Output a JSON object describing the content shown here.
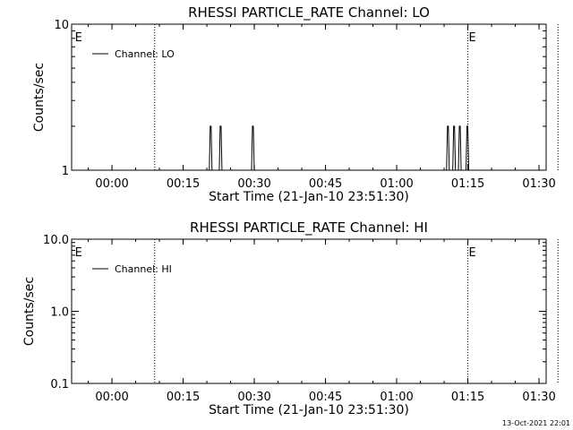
{
  "chart_data": [
    {
      "type": "line",
      "title": "RHESSI PARTICLE_RATE Channel: LO",
      "xlabel": "Start Time (21-Jan-10 23:51:30)",
      "ylabel": "Counts/sec",
      "x_tick_labels": [
        "00:00",
        "00:15",
        "00:30",
        "00:45",
        "01:00",
        "01:15",
        "01:30"
      ],
      "x_tick_minutes": [
        8.5,
        23.5,
        38.5,
        53.5,
        68.5,
        83.5,
        98.5
      ],
      "xlim_minutes": [
        0,
        100
      ],
      "y_scale": "log",
      "ylim": [
        1,
        10
      ],
      "y_tick_labels": [
        "1",
        "10"
      ],
      "y_tick_values": [
        1,
        10
      ],
      "legend": {
        "label": "Channel: LO",
        "position": "top-left"
      },
      "event_markers": [
        {
          "minute": 0.5,
          "label": "E"
        },
        {
          "minute": 83.5,
          "label": "E"
        }
      ],
      "dotted_lines_minutes": [
        17.5,
        83.5,
        102.5
      ],
      "series": [
        {
          "name": "Channel: LO",
          "spikes": [
            {
              "minute": 29.3,
              "value": 2
            },
            {
              "minute": 31.4,
              "value": 2
            },
            {
              "minute": 38.2,
              "value": 2
            },
            {
              "minute": 79.3,
              "value": 2
            },
            {
              "minute": 80.6,
              "value": 2
            },
            {
              "minute": 81.8,
              "value": 2
            },
            {
              "minute": 83.4,
              "value": 2
            }
          ]
        }
      ]
    },
    {
      "type": "line",
      "title": "RHESSI PARTICLE_RATE Channel: HI",
      "xlabel": "Start Time (21-Jan-10 23:51:30)",
      "ylabel": "Counts/sec",
      "x_tick_labels": [
        "00:00",
        "00:15",
        "00:30",
        "00:45",
        "01:00",
        "01:15",
        "01:30"
      ],
      "x_tick_minutes": [
        8.5,
        23.5,
        38.5,
        53.5,
        68.5,
        83.5,
        98.5
      ],
      "xlim_minutes": [
        0,
        100
      ],
      "y_scale": "log",
      "ylim": [
        0.1,
        10
      ],
      "y_tick_labels": [
        "0.1",
        "1.0",
        "10.0"
      ],
      "y_tick_values": [
        0.1,
        1,
        10
      ],
      "legend": {
        "label": "Channel: HI",
        "position": "top-left"
      },
      "event_markers": [
        {
          "minute": 0.5,
          "label": "E"
        },
        {
          "minute": 83.5,
          "label": "E"
        }
      ],
      "dotted_lines_minutes": [
        17.5,
        83.5,
        102.5
      ],
      "series": [
        {
          "name": "Channel: HI",
          "spikes": []
        }
      ]
    }
  ],
  "footer": {
    "timestamp": "13-Oct-2021 22:01"
  }
}
